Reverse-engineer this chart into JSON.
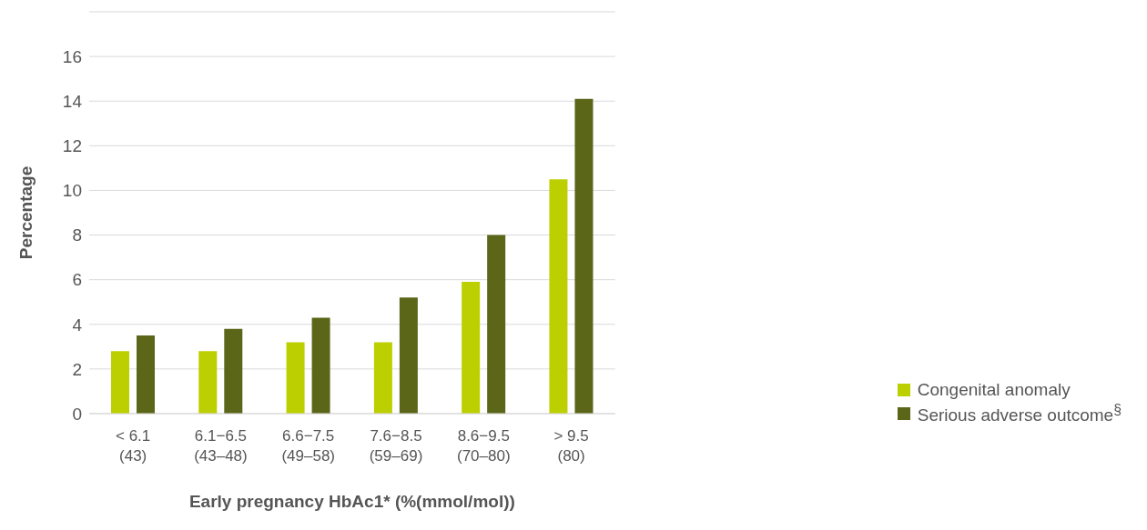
{
  "chart_data": {
    "type": "bar",
    "xlabel": "Early pregnancy HbAc1* (%(mmol/mol))",
    "ylabel": "Percentage",
    "categories": [
      "< 6.1\n(43)",
      "6.1−6.5\n(43–48)",
      "6.6−7.5\n(49–58)",
      "7.6−8.5\n(59–69)",
      "8.6−9.5\n(70–80)",
      "> 9.5\n(80)"
    ],
    "series": [
      {
        "name": "Congenital anomaly",
        "color": "#bccf00",
        "values": [
          2.8,
          2.8,
          3.2,
          3.2,
          5.9,
          10.5
        ]
      },
      {
        "name": "Serious adverse outcome$^{§}$",
        "color": "#5b6619",
        "values": [
          3.5,
          3.8,
          4.3,
          5.2,
          8.0,
          14.1
        ]
      }
    ],
    "ylim": [
      0,
      18
    ],
    "yticks": [
      0,
      2,
      4,
      6,
      8,
      10,
      12,
      14,
      16,
      {
        "value": 18,
        "label": null
      }
    ],
    "grid": "y",
    "legend": "right"
  }
}
